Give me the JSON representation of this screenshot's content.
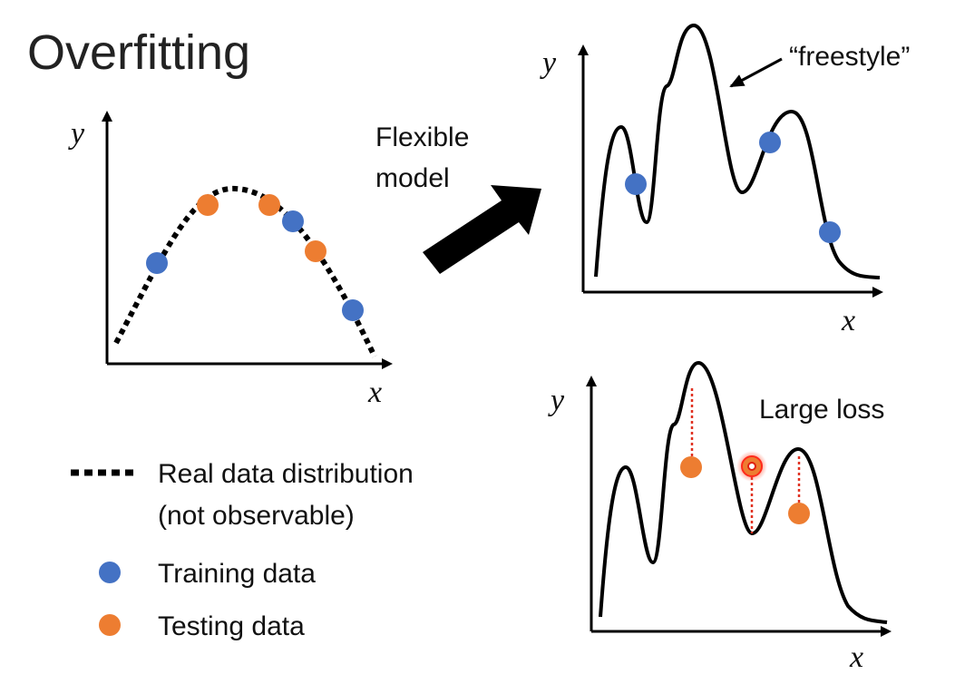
{
  "title": "Overfitting",
  "arrow_label": {
    "line1": "Flexible",
    "line2": "model"
  },
  "annotations": {
    "freestyle": "“freestyle”",
    "large_loss": "Large loss"
  },
  "axes": {
    "x_label": "x",
    "y_label": "y"
  },
  "legend": {
    "real_line1": "Real data distribution",
    "real_line2": "(not observable)",
    "training": "Training data",
    "testing": "Testing data"
  },
  "colors": {
    "training": "#4472c4",
    "testing": "#ed7d31",
    "curve": "#000000",
    "loss_line": "#e03020"
  }
}
